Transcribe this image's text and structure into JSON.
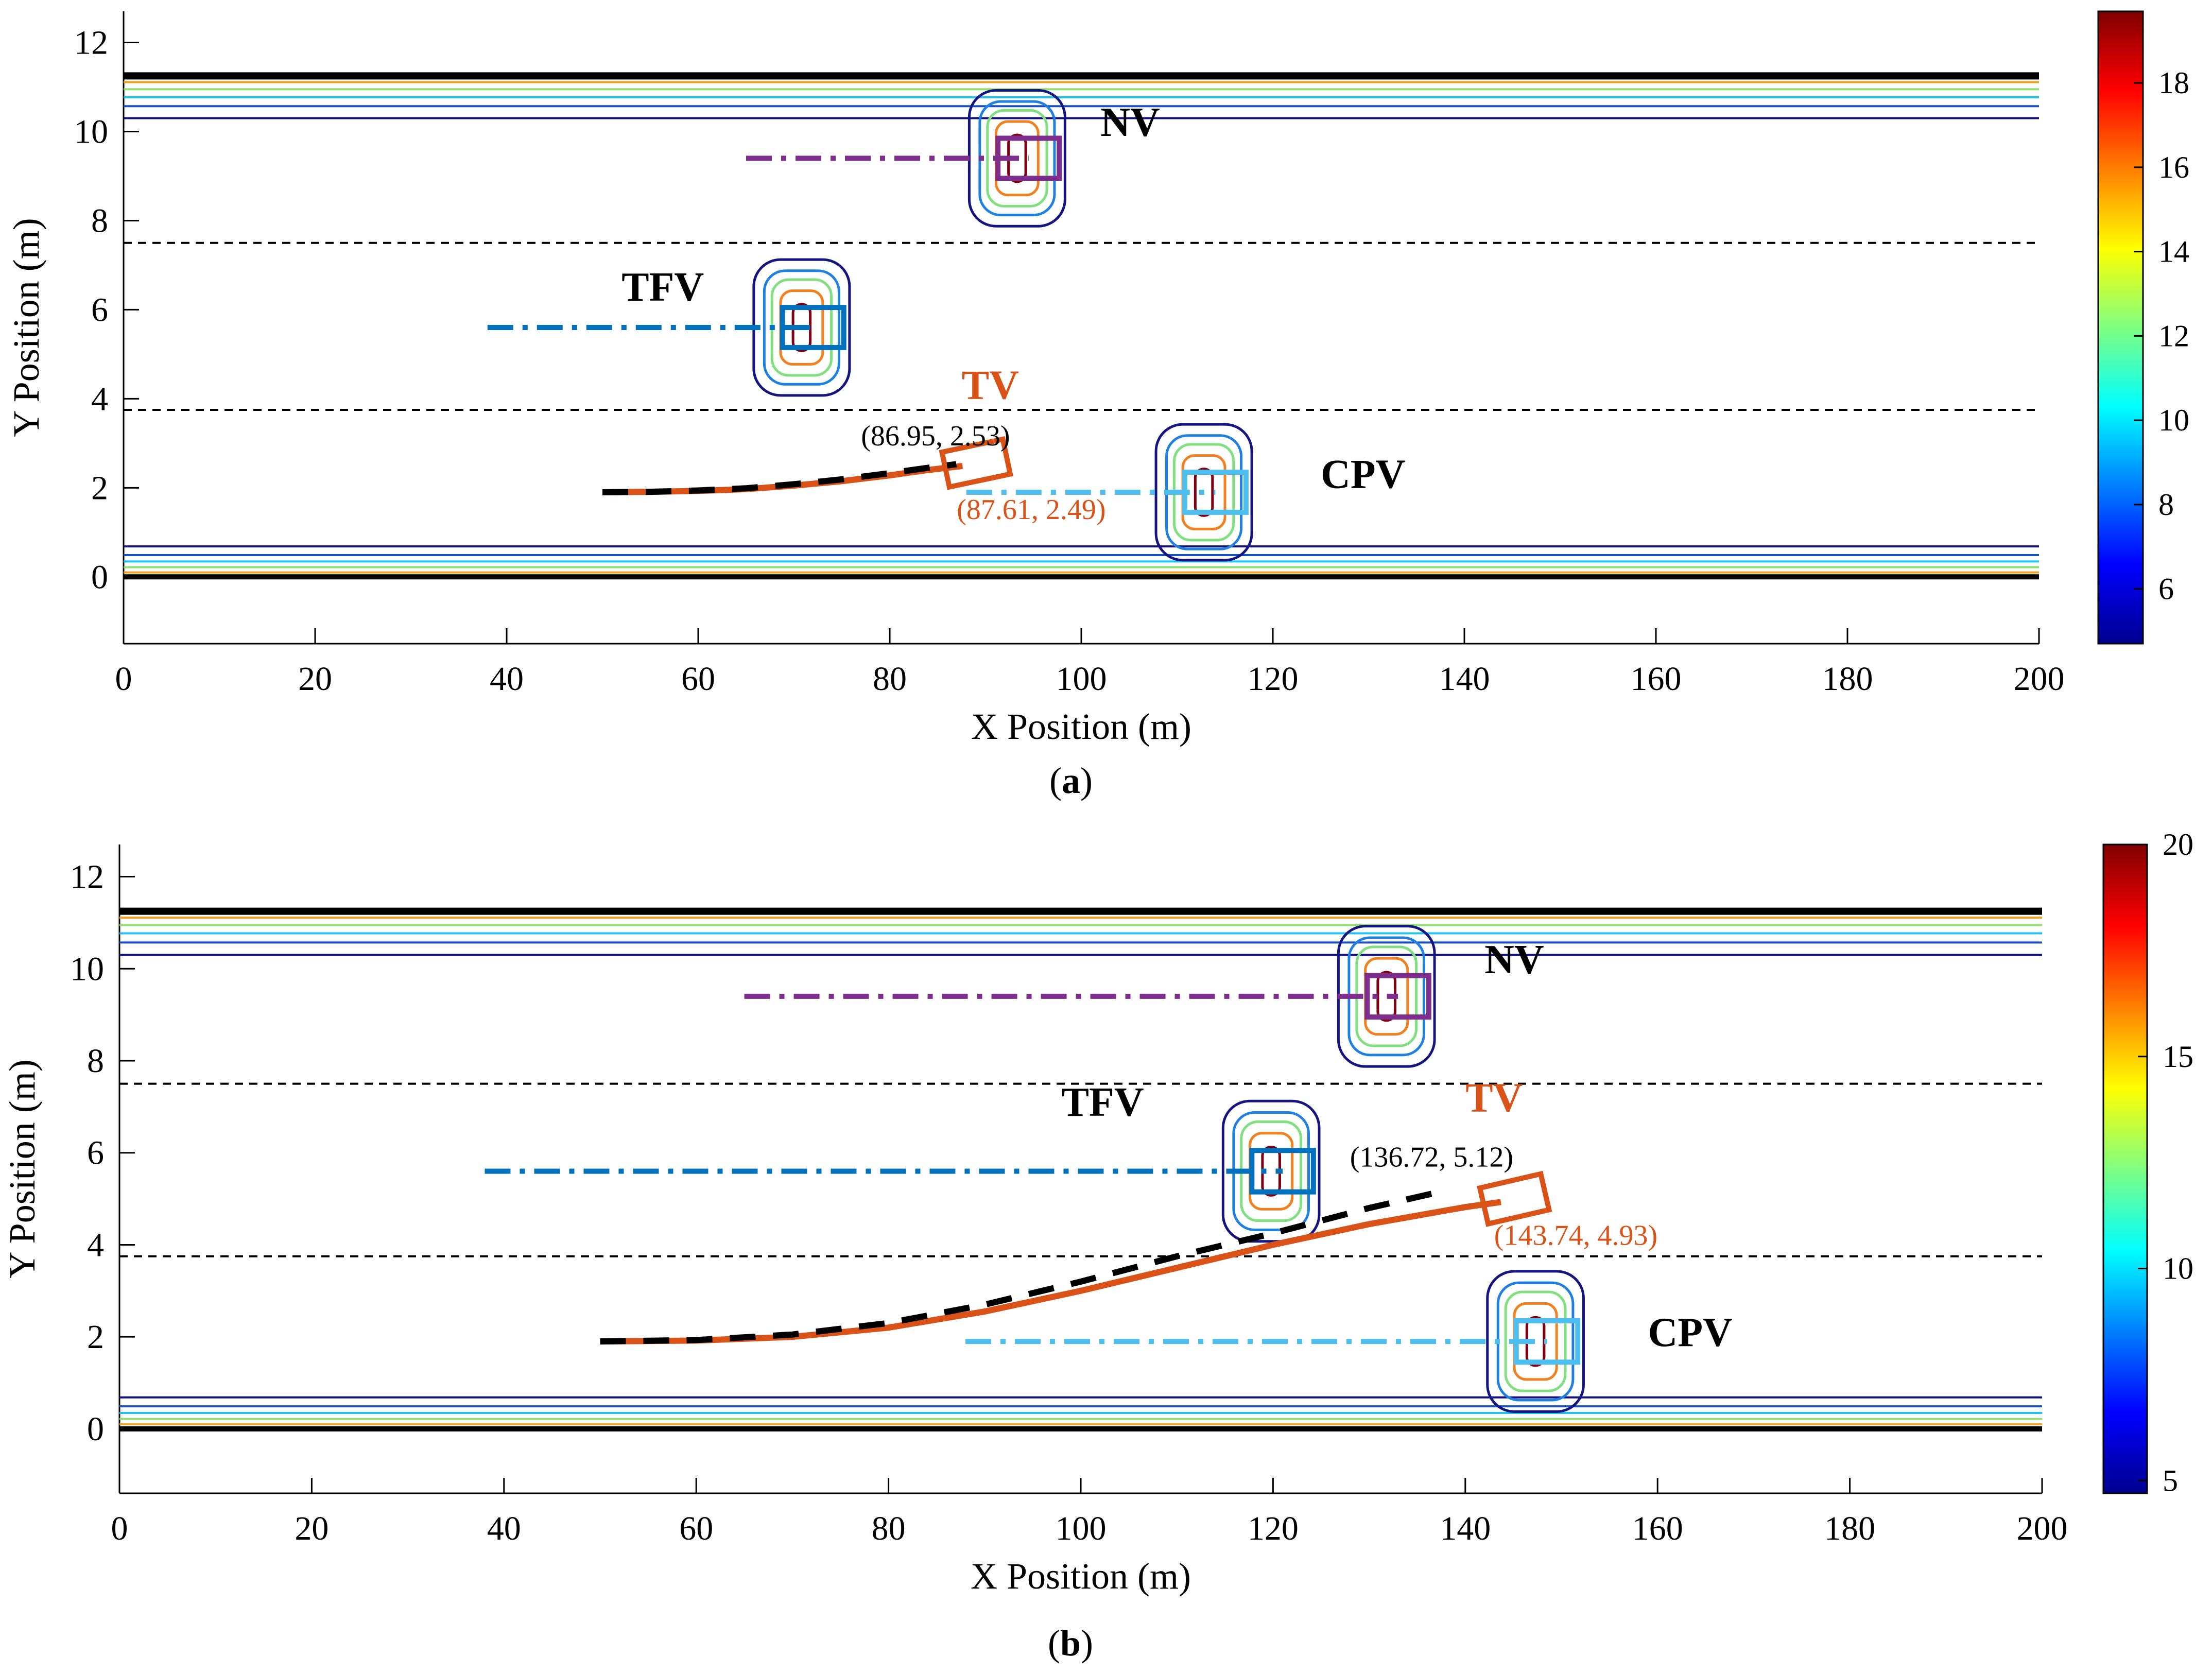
{
  "colors": {
    "tv": "#d95319",
    "tfv": "#0072bd",
    "nv": "#7e2f8e",
    "cpv": "#4dbeee",
    "reference": "#000000",
    "lane_marking": "#000000"
  },
  "chart_data": [
    {
      "id": "a",
      "type": "contour",
      "caption_open": "(",
      "caption_letter": "a",
      "caption_close": ")",
      "xlabel": "X Position (m)",
      "ylabel": "Y Position (m)",
      "xlim": [
        0,
        200
      ],
      "ylim": [
        -1.5,
        12.7
      ],
      "xticks": [
        0,
        20,
        40,
        60,
        80,
        100,
        120,
        140,
        160,
        180,
        200
      ],
      "yticks": [
        0,
        2,
        4,
        6,
        8,
        10,
        12
      ],
      "lane_lines": [
        3.75,
        7.5
      ],
      "road_edges": [
        0,
        11.25
      ],
      "colorbar": {
        "range": [
          4.7,
          19.7
        ],
        "ticks": [
          6,
          8,
          10,
          12,
          14,
          16,
          18
        ]
      },
      "vehicles": [
        {
          "label": "NV",
          "x": 94.5,
          "y": 9.4,
          "color": "nv",
          "path_from": 65,
          "label_pos": [
            102,
            9.9
          ]
        },
        {
          "label": "TFV",
          "x": 72,
          "y": 5.6,
          "color": "tfv",
          "path_from": 38,
          "label_pos": [
            52,
            6.2
          ]
        },
        {
          "label": "CPV",
          "x": 114,
          "y": 1.9,
          "color": "cpv",
          "path_from": 88,
          "label_pos": [
            125,
            2.0
          ]
        },
        {
          "label": "TV",
          "x": 87.6,
          "y": 2.49,
          "color": "tv",
          "label_pos": [
            90.5,
            4.0
          ],
          "heading": -12
        }
      ],
      "tv_trajectory": {
        "x": [
          50,
          55,
          60,
          65,
          70,
          75,
          80,
          84,
          87.6
        ],
        "y": [
          1.9,
          1.91,
          1.93,
          1.97,
          2.05,
          2.15,
          2.28,
          2.4,
          2.49
        ]
      },
      "ref_trajectory": {
        "x": [
          50,
          55,
          60,
          65,
          70,
          75,
          80,
          84,
          86.95
        ],
        "y": [
          1.9,
          1.91,
          1.94,
          1.99,
          2.08,
          2.19,
          2.33,
          2.45,
          2.53
        ]
      },
      "annotations": [
        {
          "text": "(86.95,   2.53)",
          "x": 77,
          "y": 2.95,
          "color": "reference"
        },
        {
          "text": "(87.61, 2.49)",
          "x": 87,
          "y": 1.3,
          "color": "tv"
        }
      ]
    },
    {
      "id": "b",
      "type": "contour",
      "caption_open": "(",
      "caption_letter": "b",
      "caption_close": ")",
      "xlabel": "X Position (m)",
      "ylabel": "Y Position (m)",
      "xlim": [
        0,
        200
      ],
      "ylim": [
        -1.4,
        12.7
      ],
      "xticks": [
        0,
        20,
        40,
        60,
        80,
        100,
        120,
        140,
        160,
        180,
        200
      ],
      "yticks": [
        0,
        2,
        4,
        6,
        8,
        10,
        12
      ],
      "lane_lines": [
        3.75,
        7.5
      ],
      "road_edges": [
        0,
        11.25
      ],
      "colorbar": {
        "range": [
          4.7,
          20
        ],
        "ticks": [
          5,
          10,
          15,
          20
        ]
      },
      "vehicles": [
        {
          "label": "NV",
          "x": 133,
          "y": 9.4,
          "color": "nv",
          "path_from": 65,
          "label_pos": [
            142,
            9.9
          ]
        },
        {
          "label": "TFV",
          "x": 121,
          "y": 5.6,
          "color": "tfv",
          "path_from": 38,
          "label_pos": [
            98,
            6.8
          ]
        },
        {
          "label": "CPV",
          "x": 148.5,
          "y": 1.9,
          "color": "cpv",
          "path_from": 88,
          "label_pos": [
            159,
            1.8
          ]
        },
        {
          "label": "TV",
          "x": 143.7,
          "y": 4.93,
          "color": "tv",
          "label_pos": [
            143,
            6.9
          ],
          "heading": -13
        }
      ],
      "tv_trajectory": {
        "x": [
          50,
          60,
          70,
          80,
          90,
          100,
          110,
          120,
          130,
          140,
          143.7
        ],
        "y": [
          1.9,
          1.92,
          2.0,
          2.2,
          2.55,
          3.0,
          3.5,
          4.0,
          4.45,
          4.82,
          4.93
        ]
      },
      "ref_trajectory": {
        "x": [
          50,
          60,
          70,
          80,
          90,
          100,
          110,
          120,
          130,
          136.72
        ],
        "y": [
          1.9,
          1.93,
          2.05,
          2.3,
          2.7,
          3.2,
          3.75,
          4.25,
          4.8,
          5.12
        ]
      },
      "annotations": [
        {
          "text": "(136.72, 5.12)",
          "x": 128,
          "y": 5.7,
          "color": "reference"
        },
        {
          "text": "(143.74, 4.93)",
          "x": 143,
          "y": 4.0,
          "color": "tv"
        }
      ]
    }
  ]
}
